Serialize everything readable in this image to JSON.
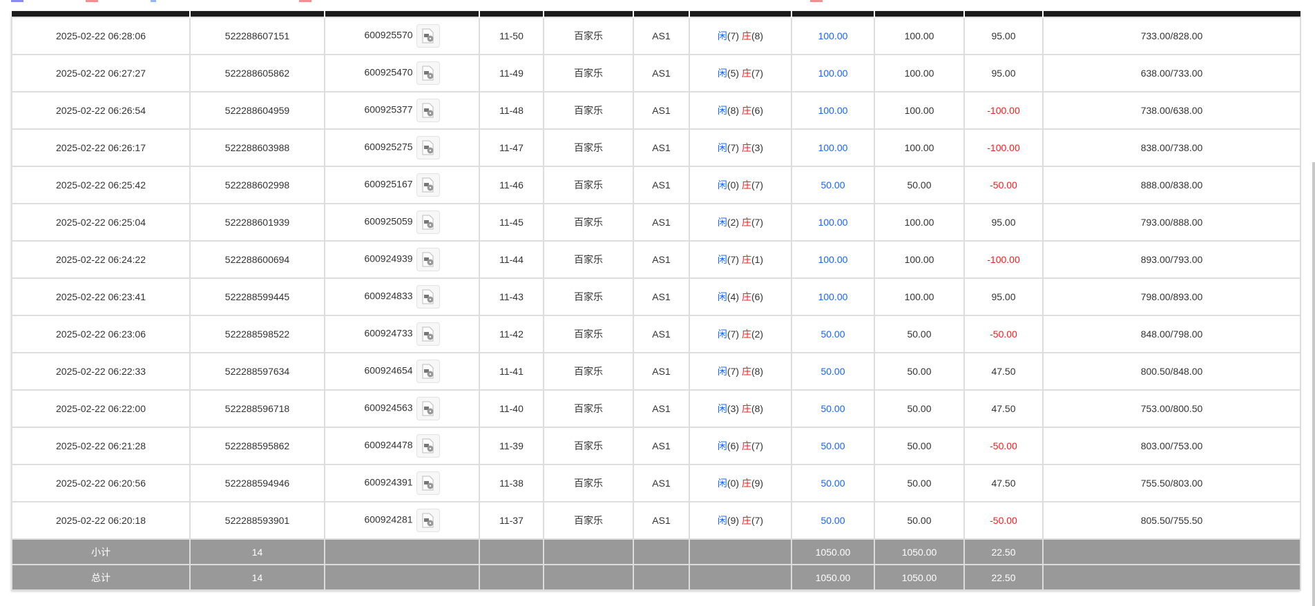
{
  "colors": {
    "blue": "#1565ff",
    "red": "#ff1a1a",
    "header": "#1c1c1c",
    "summary_bg": "#999999"
  },
  "rows": [
    {
      "time": "2025-02-22 06:28:06",
      "bet_id": "522288607151",
      "round_id": "600925570",
      "shoe": "11-50",
      "game": "百家乐",
      "table": "AS1",
      "player_label": "闲",
      "player": "(7)",
      "banker_label": "庄",
      "banker": "(8)",
      "bet": "100.00",
      "valid": "100.00",
      "winloss": "95.00",
      "winloss_neg": false,
      "balance": "733.00/828.00"
    },
    {
      "time": "2025-02-22 06:27:27",
      "bet_id": "522288605862",
      "round_id": "600925470",
      "shoe": "11-49",
      "game": "百家乐",
      "table": "AS1",
      "player_label": "闲",
      "player": "(5)",
      "banker_label": "庄",
      "banker": "(7)",
      "bet": "100.00",
      "valid": "100.00",
      "winloss": "95.00",
      "winloss_neg": false,
      "balance": "638.00/733.00"
    },
    {
      "time": "2025-02-22 06:26:54",
      "bet_id": "522288604959",
      "round_id": "600925377",
      "shoe": "11-48",
      "game": "百家乐",
      "table": "AS1",
      "player_label": "闲",
      "player": "(8)",
      "banker_label": "庄",
      "banker": "(6)",
      "bet": "100.00",
      "valid": "100.00",
      "winloss": "-100.00",
      "winloss_neg": true,
      "balance": "738.00/638.00"
    },
    {
      "time": "2025-02-22 06:26:17",
      "bet_id": "522288603988",
      "round_id": "600925275",
      "shoe": "11-47",
      "game": "百家乐",
      "table": "AS1",
      "player_label": "闲",
      "player": "(7)",
      "banker_label": "庄",
      "banker": "(3)",
      "bet": "100.00",
      "valid": "100.00",
      "winloss": "-100.00",
      "winloss_neg": true,
      "balance": "838.00/738.00"
    },
    {
      "time": "2025-02-22 06:25:42",
      "bet_id": "522288602998",
      "round_id": "600925167",
      "shoe": "11-46",
      "game": "百家乐",
      "table": "AS1",
      "player_label": "闲",
      "player": "(0)",
      "banker_label": "庄",
      "banker": "(7)",
      "bet": "50.00",
      "valid": "50.00",
      "winloss": "-50.00",
      "winloss_neg": true,
      "balance": "888.00/838.00"
    },
    {
      "time": "2025-02-22 06:25:04",
      "bet_id": "522288601939",
      "round_id": "600925059",
      "shoe": "11-45",
      "game": "百家乐",
      "table": "AS1",
      "player_label": "闲",
      "player": "(2)",
      "banker_label": "庄",
      "banker": "(7)",
      "bet": "100.00",
      "valid": "100.00",
      "winloss": "95.00",
      "winloss_neg": false,
      "balance": "793.00/888.00"
    },
    {
      "time": "2025-02-22 06:24:22",
      "bet_id": "522288600694",
      "round_id": "600924939",
      "shoe": "11-44",
      "game": "百家乐",
      "table": "AS1",
      "player_label": "闲",
      "player": "(7)",
      "banker_label": "庄",
      "banker": "(1)",
      "bet": "100.00",
      "valid": "100.00",
      "winloss": "-100.00",
      "winloss_neg": true,
      "balance": "893.00/793.00"
    },
    {
      "time": "2025-02-22 06:23:41",
      "bet_id": "522288599445",
      "round_id": "600924833",
      "shoe": "11-43",
      "game": "百家乐",
      "table": "AS1",
      "player_label": "闲",
      "player": "(4)",
      "banker_label": "庄",
      "banker": "(6)",
      "bet": "100.00",
      "valid": "100.00",
      "winloss": "95.00",
      "winloss_neg": false,
      "balance": "798.00/893.00"
    },
    {
      "time": "2025-02-22 06:23:06",
      "bet_id": "522288598522",
      "round_id": "600924733",
      "shoe": "11-42",
      "game": "百家乐",
      "table": "AS1",
      "player_label": "闲",
      "player": "(7)",
      "banker_label": "庄",
      "banker": "(2)",
      "bet": "50.00",
      "valid": "50.00",
      "winloss": "-50.00",
      "winloss_neg": true,
      "balance": "848.00/798.00"
    },
    {
      "time": "2025-02-22 06:22:33",
      "bet_id": "522288597634",
      "round_id": "600924654",
      "shoe": "11-41",
      "game": "百家乐",
      "table": "AS1",
      "player_label": "闲",
      "player": "(7)",
      "banker_label": "庄",
      "banker": "(8)",
      "bet": "50.00",
      "valid": "50.00",
      "winloss": "47.50",
      "winloss_neg": false,
      "balance": "800.50/848.00"
    },
    {
      "time": "2025-02-22 06:22:00",
      "bet_id": "522288596718",
      "round_id": "600924563",
      "shoe": "11-40",
      "game": "百家乐",
      "table": "AS1",
      "player_label": "闲",
      "player": "(3)",
      "banker_label": "庄",
      "banker": "(8)",
      "bet": "50.00",
      "valid": "50.00",
      "winloss": "47.50",
      "winloss_neg": false,
      "balance": "753.00/800.50"
    },
    {
      "time": "2025-02-22 06:21:28",
      "bet_id": "522288595862",
      "round_id": "600924478",
      "shoe": "11-39",
      "game": "百家乐",
      "table": "AS1",
      "player_label": "闲",
      "player": "(6)",
      "banker_label": "庄",
      "banker": "(7)",
      "bet": "50.00",
      "valid": "50.00",
      "winloss": "-50.00",
      "winloss_neg": true,
      "balance": "803.00/753.00"
    },
    {
      "time": "2025-02-22 06:20:56",
      "bet_id": "522288594946",
      "round_id": "600924391",
      "shoe": "11-38",
      "game": "百家乐",
      "table": "AS1",
      "player_label": "闲",
      "player": "(0)",
      "banker_label": "庄",
      "banker": "(9)",
      "bet": "50.00",
      "valid": "50.00",
      "winloss": "47.50",
      "winloss_neg": false,
      "balance": "755.50/803.00"
    },
    {
      "time": "2025-02-22 06:20:18",
      "bet_id": "522288593901",
      "round_id": "600924281",
      "shoe": "11-37",
      "game": "百家乐",
      "table": "AS1",
      "player_label": "闲",
      "player": "(9)",
      "banker_label": "庄",
      "banker": "(7)",
      "bet": "50.00",
      "valid": "50.00",
      "winloss": "-50.00",
      "winloss_neg": true,
      "balance": "805.50/755.50"
    }
  ],
  "summary": [
    {
      "label": "小计",
      "count": "14",
      "bet": "1050.00",
      "valid": "1050.00",
      "winloss": "22.50"
    },
    {
      "label": "总计",
      "count": "14",
      "bet": "1050.00",
      "valid": "1050.00",
      "winloss": "22.50"
    }
  ]
}
